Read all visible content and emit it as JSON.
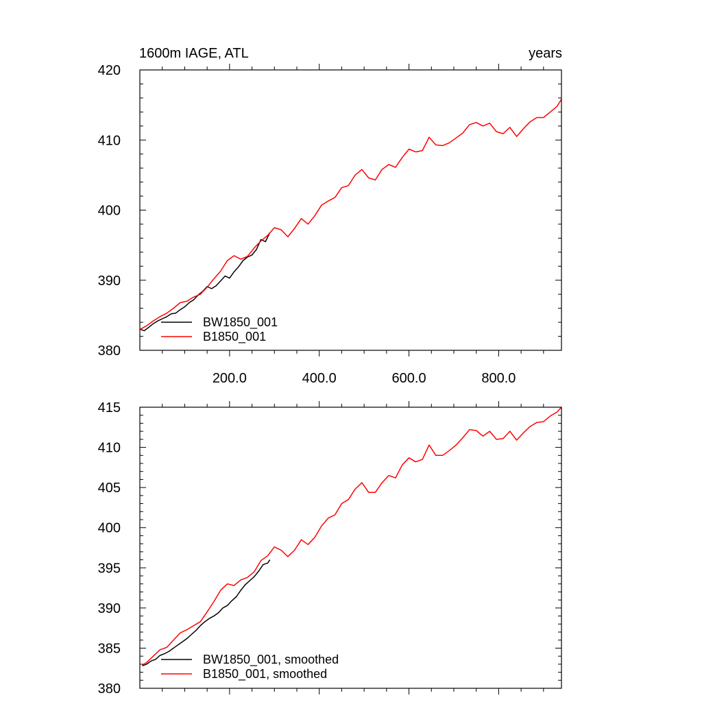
{
  "chart_data": [
    {
      "type": "line",
      "title_left": "1600m IAGE, ATL",
      "title_right": "years",
      "xlim": [
        0,
        940
      ],
      "ylim": [
        380,
        420
      ],
      "yticks": [
        380,
        390,
        400,
        410,
        420
      ],
      "xticks": [
        200,
        400,
        600,
        800
      ],
      "xtick_labels": [
        "200.0",
        "400.0",
        "600.0",
        "800.0"
      ],
      "legend_position": "lower-left",
      "series": [
        {
          "name": "BW1850_001",
          "color": "#000000",
          "x": [
            1,
            10,
            20,
            30,
            40,
            50,
            60,
            70,
            80,
            90,
            100,
            110,
            120,
            130,
            140,
            150,
            160,
            170,
            180,
            190,
            200,
            210,
            220,
            230,
            240,
            250,
            260,
            270,
            280,
            290
          ],
          "y": [
            383,
            382.8,
            383.3,
            383.8,
            384.2,
            384.5,
            384.8,
            385.2,
            385.3,
            385.8,
            386.2,
            386.8,
            387.2,
            387.9,
            388.4,
            389.1,
            388.8,
            389.2,
            389.9,
            390.6,
            390.3,
            391.2,
            391.9,
            392.8,
            393.3,
            393.6,
            394.4,
            395.8,
            395.5,
            396.8
          ]
        },
        {
          "name": "B1850_001",
          "color": "#ff0000",
          "x": [
            1,
            15,
            30,
            45,
            60,
            75,
            90,
            105,
            120,
            135,
            150,
            165,
            180,
            195,
            210,
            225,
            240,
            255,
            270,
            285,
            300,
            315,
            330,
            345,
            360,
            375,
            390,
            405,
            420,
            435,
            450,
            465,
            480,
            495,
            510,
            525,
            540,
            555,
            570,
            585,
            600,
            615,
            630,
            645,
            660,
            675,
            690,
            705,
            720,
            735,
            750,
            765,
            780,
            795,
            810,
            825,
            840,
            855,
            870,
            885,
            900,
            915,
            930,
            940
          ],
          "y": [
            383,
            383.5,
            384.2,
            384.8,
            385.3,
            386.0,
            386.8,
            387.0,
            387.6,
            388.0,
            389.0,
            390.2,
            391.3,
            392.8,
            393.5,
            393.0,
            393.4,
            394.6,
            395.6,
            396.4,
            397.5,
            397.2,
            396.2,
            397.4,
            398.8,
            398.0,
            399.2,
            400.7,
            401.3,
            401.8,
            403.2,
            403.5,
            405.0,
            405.8,
            404.6,
            404.3,
            405.8,
            406.5,
            406.1,
            407.5,
            408.7,
            408.3,
            408.5,
            410.4,
            409.3,
            409.2,
            409.6,
            410.3,
            411.0,
            412.2,
            412.5,
            412.0,
            412.4,
            411.2,
            410.9,
            411.8,
            410.5,
            411.6,
            412.6,
            413.2,
            413.2,
            414.0,
            414.8,
            415.8
          ]
        }
      ]
    },
    {
      "type": "line",
      "xlim": [
        0,
        940
      ],
      "ylim": [
        380,
        415
      ],
      "yticks": [
        380,
        385,
        390,
        395,
        400,
        405,
        410,
        415
      ],
      "xticks": [
        200,
        400,
        600,
        800
      ],
      "legend_position": "lower-left",
      "series": [
        {
          "name": "BW1850_001, smoothed",
          "color": "#000000",
          "x": [
            5,
            15,
            25,
            35,
            45,
            55,
            65,
            75,
            85,
            95,
            105,
            115,
            125,
            135,
            145,
            155,
            165,
            175,
            185,
            195,
            205,
            215,
            225,
            235,
            245,
            255,
            265,
            275,
            285,
            290
          ],
          "y": [
            382.8,
            383.0,
            383.4,
            383.6,
            384.1,
            384.3,
            384.6,
            385.0,
            385.4,
            385.8,
            386.2,
            386.7,
            387.2,
            387.8,
            388.3,
            388.7,
            389.0,
            389.4,
            390.0,
            390.3,
            390.9,
            391.4,
            392.2,
            392.9,
            393.4,
            393.9,
            394.6,
            395.4,
            395.6,
            396.0
          ]
        },
        {
          "name": "B1850_001, smoothed",
          "color": "#ff0000",
          "x": [
            5,
            15,
            30,
            45,
            60,
            75,
            90,
            105,
            120,
            135,
            150,
            165,
            180,
            195,
            210,
            225,
            240,
            255,
            270,
            285,
            300,
            315,
            330,
            345,
            360,
            375,
            390,
            405,
            420,
            435,
            450,
            465,
            480,
            495,
            510,
            525,
            540,
            555,
            570,
            585,
            600,
            615,
            630,
            645,
            660,
            675,
            690,
            705,
            720,
            735,
            750,
            765,
            780,
            795,
            810,
            825,
            840,
            855,
            870,
            885,
            900,
            915,
            930,
            940
          ],
          "y": [
            382.9,
            383.2,
            384.0,
            384.8,
            385.1,
            386.0,
            386.9,
            387.3,
            387.8,
            388.3,
            389.5,
            390.8,
            392.2,
            393.0,
            392.8,
            393.5,
            393.8,
            394.5,
            395.9,
            396.5,
            397.6,
            397.2,
            396.4,
            397.2,
            398.5,
            397.9,
            398.8,
            400.2,
            401.2,
            401.6,
            403.0,
            403.5,
            404.8,
            405.6,
            404.4,
            404.4,
            405.6,
            406.5,
            406.2,
            407.8,
            408.7,
            408.2,
            408.5,
            410.3,
            409.0,
            409.0,
            409.6,
            410.3,
            411.2,
            412.2,
            412.1,
            411.4,
            412.0,
            411.0,
            411.1,
            412.0,
            410.9,
            411.8,
            412.6,
            413.1,
            413.2,
            413.9,
            414.4,
            415.0
          ]
        }
      ]
    }
  ]
}
